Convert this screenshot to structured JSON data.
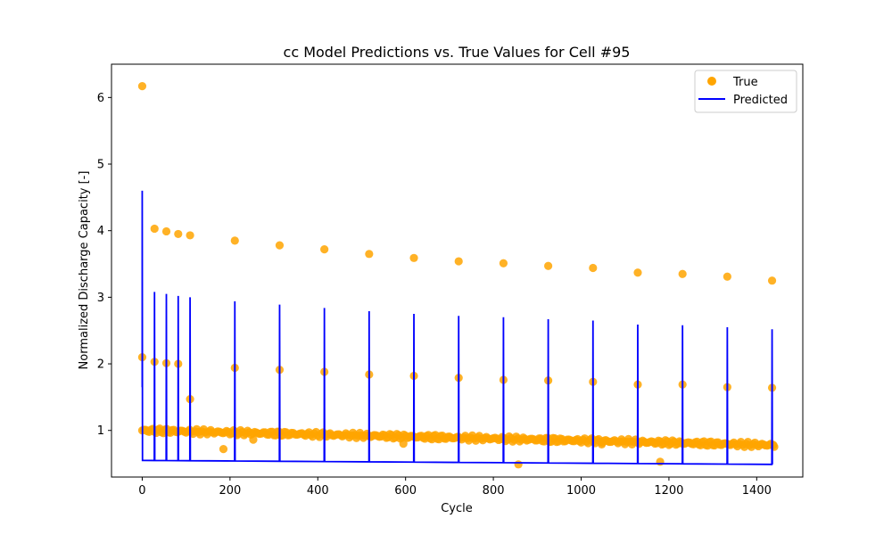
{
  "chart_data": {
    "type": "scatter",
    "title": "cc Model Predictions vs. True Values for Cell #95",
    "xlabel": "Cycle",
    "ylabel": "Normalized Discharge Capacity [-]",
    "xlim": [
      -70,
      1505
    ],
    "ylim": [
      0.3,
      6.5
    ],
    "x_ticks": [
      0,
      200,
      400,
      600,
      800,
      1000,
      1200,
      1400
    ],
    "y_ticks": [
      1,
      2,
      3,
      4,
      5,
      6
    ],
    "legend_position": "top-right",
    "colors": {
      "true": "#FFA500",
      "predicted": "#0000FF"
    },
    "series": [
      {
        "name": "True",
        "kind": "scatter",
        "color": "#FFA500",
        "points": [
          [
            0,
            6.17
          ],
          [
            28,
            4.03
          ],
          [
            55,
            3.99
          ],
          [
            82,
            3.95
          ],
          [
            109,
            3.93
          ],
          [
            211,
            3.85
          ],
          [
            313,
            3.78
          ],
          [
            415,
            3.72
          ],
          [
            517,
            3.65
          ],
          [
            619,
            3.59
          ],
          [
            721,
            3.54
          ],
          [
            823,
            3.51
          ],
          [
            925,
            3.47
          ],
          [
            1027,
            3.44
          ],
          [
            1129,
            3.37
          ],
          [
            1231,
            3.35
          ],
          [
            1333,
            3.31
          ],
          [
            1435,
            3.25
          ],
          [
            0,
            2.1
          ],
          [
            28,
            2.03
          ],
          [
            55,
            2.01
          ],
          [
            82,
            2.0
          ],
          [
            109,
            1.47
          ],
          [
            211,
            1.94
          ],
          [
            313,
            1.91
          ],
          [
            415,
            1.88
          ],
          [
            517,
            1.84
          ],
          [
            619,
            1.82
          ],
          [
            721,
            1.79
          ],
          [
            823,
            1.76
          ],
          [
            925,
            1.75
          ],
          [
            1027,
            1.73
          ],
          [
            1129,
            1.69
          ],
          [
            1231,
            1.69
          ],
          [
            1333,
            1.65
          ],
          [
            1435,
            1.64
          ],
          [
            185,
            0.72
          ],
          [
            253,
            0.86
          ],
          [
            595,
            0.8
          ],
          [
            857,
            0.49
          ],
          [
            1047,
            0.79
          ],
          [
            1180,
            0.53
          ],
          [
            1438,
            0.78
          ]
        ],
        "baseline": {
          "description": "dense per-cycle observations",
          "start_cycle": 0,
          "end_cycle": 1440,
          "step": 4,
          "start_value": 1.0,
          "end_value": 0.78
        }
      },
      {
        "name": "Predicted",
        "kind": "line",
        "color": "#0000FF",
        "baseline_start": 0.55,
        "baseline_end": 0.49,
        "peaks": [
          [
            0,
            4.6
          ],
          [
            28,
            3.08
          ],
          [
            55,
            3.05
          ],
          [
            82,
            3.02
          ],
          [
            109,
            3.0
          ],
          [
            211,
            2.94
          ],
          [
            313,
            2.89
          ],
          [
            415,
            2.84
          ],
          [
            517,
            2.79
          ],
          [
            619,
            2.75
          ],
          [
            721,
            2.72
          ],
          [
            823,
            2.7
          ],
          [
            925,
            2.67
          ],
          [
            1027,
            2.65
          ],
          [
            1129,
            2.59
          ],
          [
            1231,
            2.58
          ],
          [
            1333,
            2.55
          ],
          [
            1435,
            2.52
          ]
        ]
      }
    ]
  }
}
